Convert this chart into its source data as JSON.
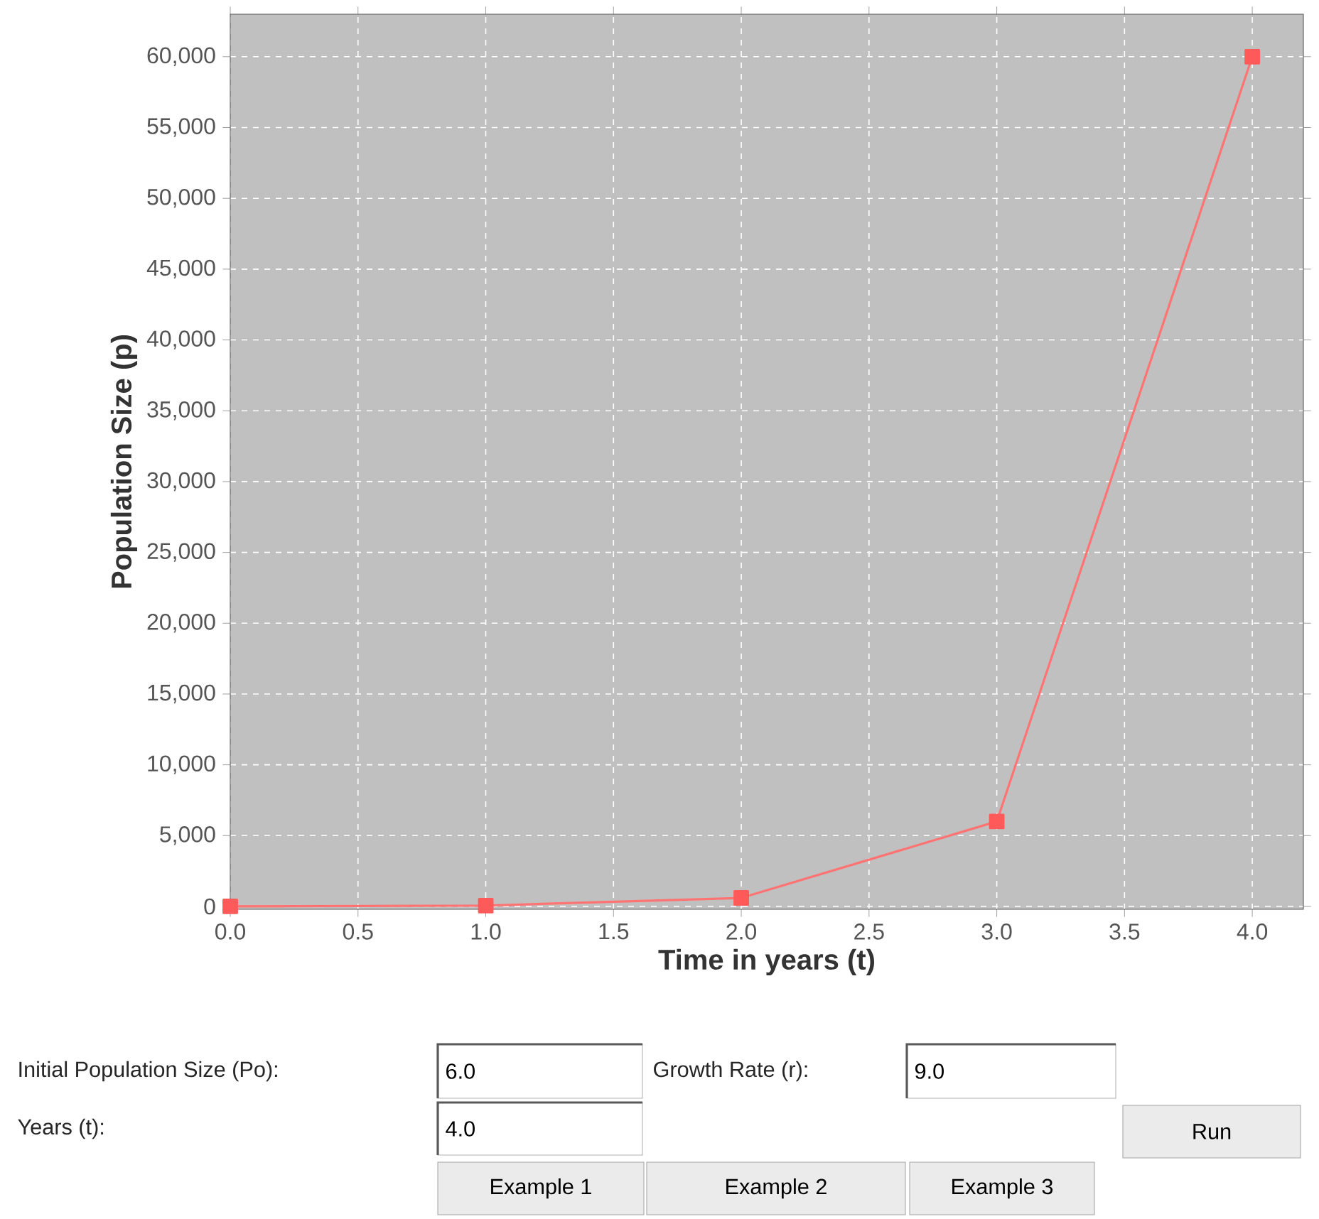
{
  "chart_data": {
    "type": "line",
    "xlabel": "Time in years (t)",
    "ylabel": "Population Size (p)",
    "x": [
      0,
      1,
      2,
      3,
      4
    ],
    "series": [
      {
        "color": "#ff5a5a",
        "values": [
          6,
          60,
          600,
          6000,
          60000
        ]
      }
    ],
    "xlim": [
      0,
      4.2
    ],
    "ylim": [
      -200,
      63000
    ],
    "xticks": [
      {
        "value": 0,
        "label": "0.0"
      },
      {
        "value": 0.5,
        "label": "0.5"
      },
      {
        "value": 1,
        "label": "1.0"
      },
      {
        "value": 1.5,
        "label": "1.5"
      },
      {
        "value": 2,
        "label": "2.0"
      },
      {
        "value": 2.5,
        "label": "2.5"
      },
      {
        "value": 3,
        "label": "3.0"
      },
      {
        "value": 3.5,
        "label": "3.5"
      },
      {
        "value": 4,
        "label": "4.0"
      }
    ],
    "yticks": [
      0,
      {
        "value": 5000,
        "label": "5,000"
      },
      {
        "value": 10000,
        "label": "10,000"
      },
      {
        "value": 15000,
        "label": "15,000"
      },
      {
        "value": 20000,
        "label": "20,000"
      },
      {
        "value": 25000,
        "label": "25,000"
      },
      {
        "value": 30000,
        "label": "30,000"
      },
      {
        "value": 35000,
        "label": "35,000"
      },
      {
        "value": 40000,
        "label": "40,000"
      },
      {
        "value": 45000,
        "label": "45,000"
      },
      {
        "value": 50000,
        "label": "50,000"
      },
      {
        "value": 55000,
        "label": "55,000"
      },
      {
        "value": 60000,
        "label": "60,000"
      }
    ],
    "grid": true,
    "marker": "square",
    "line_style": "solid",
    "annotations": [
      "Initial Population Size (Po):",
      "6.0",
      "Growth Rate (r):",
      "9.0",
      "Years (t):",
      "4.0",
      "Run",
      "Example 1",
      "Example 2",
      "Example 3"
    ]
  }
}
